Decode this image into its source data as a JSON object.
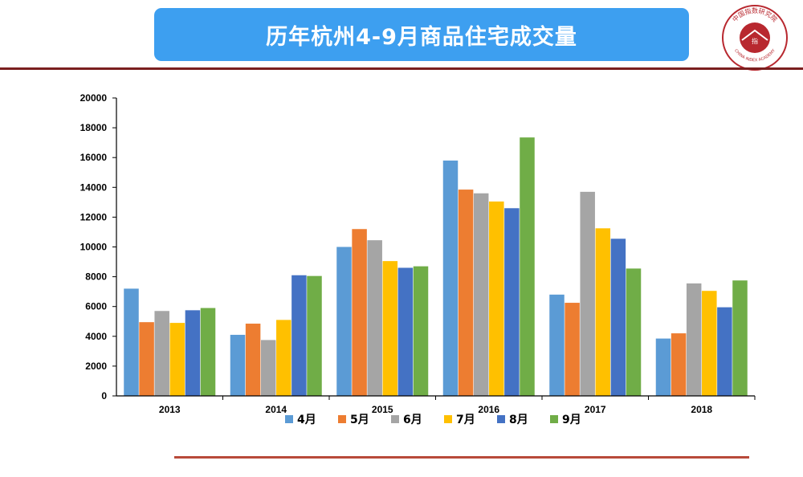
{
  "header": {
    "title": "历年杭州4-9月商品住宅成交量",
    "logo_text": "中国指数研究院",
    "logo_text_en": "CHINA INDEX ACADEMY",
    "logo_center_text": "指"
  },
  "colors": {
    "title_bg": "#3d9ff0",
    "top_rule": "#7a1f1f",
    "bottom_rule": "#b84a3a"
  },
  "chart_data": {
    "type": "bar",
    "categories": [
      "2013",
      "2014",
      "2015",
      "2016",
      "2017",
      "2018"
    ],
    "series": [
      {
        "name": "4月",
        "color": "#5b9bd5",
        "values": [
          7200,
          4100,
          10000,
          15800,
          6800,
          3850
        ]
      },
      {
        "name": "5月",
        "color": "#ed7d31",
        "values": [
          4950,
          4850,
          11200,
          13850,
          6250,
          4200
        ]
      },
      {
        "name": "6月",
        "color": "#a5a5a5",
        "values": [
          5700,
          3750,
          10450,
          13600,
          13700,
          7550
        ]
      },
      {
        "name": "7月",
        "color": "#ffc000",
        "values": [
          4900,
          5100,
          9050,
          13050,
          11250,
          7050
        ]
      },
      {
        "name": "8月",
        "color": "#4472c4",
        "values": [
          5750,
          8100,
          8600,
          12600,
          10550,
          5950
        ]
      },
      {
        "name": "9月",
        "color": "#70ad47",
        "values": [
          5900,
          8050,
          8700,
          17350,
          8550,
          7750
        ]
      }
    ],
    "yticks": [
      "0",
      "2000",
      "4000",
      "6000",
      "8000",
      "10000",
      "12000",
      "14000",
      "16000",
      "18000",
      "20000"
    ],
    "ylim": [
      0,
      20000
    ],
    "grid": false,
    "legend_position": "bottom",
    "title": "",
    "xlabel": "",
    "ylabel": ""
  }
}
